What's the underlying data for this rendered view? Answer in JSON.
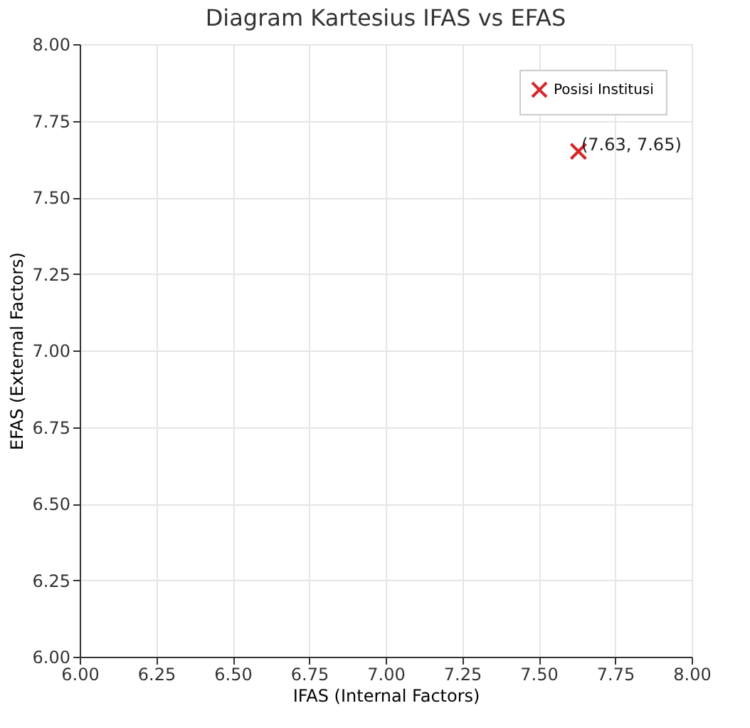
{
  "chart_data": {
    "type": "scatter",
    "title": "Diagram Kartesius IFAS vs EFAS",
    "xlabel": "IFAS (Internal Factors)",
    "ylabel": "EFAS (External Factors)",
    "x": [
      7.63
    ],
    "series": [
      {
        "name": "Posisi Institusi",
        "color": "#d62728",
        "values": [
          7.65
        ]
      }
    ],
    "annotations": [
      {
        "text": "(7.63, 7.65)",
        "x": 7.63,
        "y": 7.65
      }
    ],
    "xlim": [
      6,
      8
    ],
    "ylim": [
      6,
      8
    ],
    "xticks": [
      {
        "value": 6,
        "label": "6.00"
      },
      {
        "value": 6.25,
        "label": "6.25"
      },
      {
        "value": 6.5,
        "label": "6.50"
      },
      {
        "value": 6.75,
        "label": "6.75"
      },
      {
        "value": 7,
        "label": "7.00"
      },
      {
        "value": 7.25,
        "label": "7.25"
      },
      {
        "value": 7.5,
        "label": "7.50"
      },
      {
        "value": 7.75,
        "label": "7.75"
      },
      {
        "value": 8,
        "label": "8.00"
      }
    ],
    "yticks": [
      {
        "value": 6,
        "label": "6.00"
      },
      {
        "value": 6.25,
        "label": "6.25"
      },
      {
        "value": 6.5,
        "label": "6.50"
      },
      {
        "value": 6.75,
        "label": "6.75"
      },
      {
        "value": 7,
        "label": "7.00"
      },
      {
        "value": 7.25,
        "label": "7.25"
      },
      {
        "value": 7.5,
        "label": "7.50"
      },
      {
        "value": 7.75,
        "label": "7.75"
      },
      {
        "value": 8,
        "label": "8.00"
      }
    ],
    "grid": true,
    "legend": "top right",
    "marker": "cross"
  }
}
